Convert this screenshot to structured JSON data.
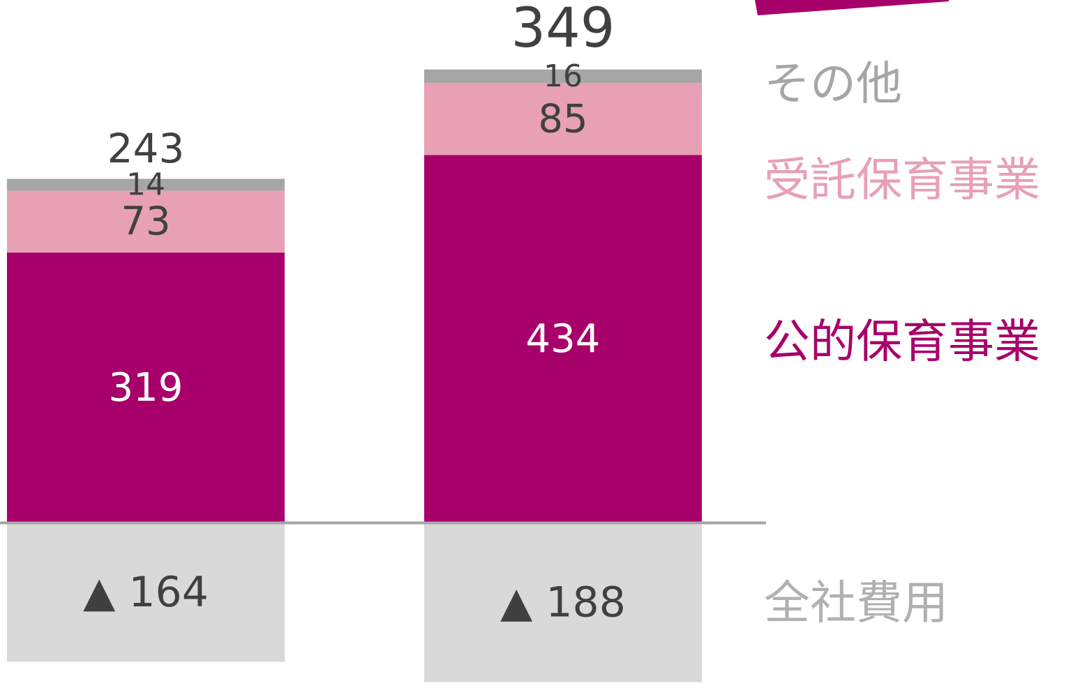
{
  "chart_data": {
    "type": "bar",
    "stacked": true,
    "categories": [
      null,
      null
    ],
    "series": [
      {
        "name": "公的保育事業",
        "color": "#a8006a",
        "values": [
          319,
          434
        ]
      },
      {
        "name": "受託保育事業",
        "color": "#e8a0b4",
        "values": [
          73,
          85
        ]
      },
      {
        "name": "その他",
        "color": "#a6a6a6",
        "values": [
          14,
          16
        ]
      },
      {
        "name": "全社費用",
        "color": "#d9d9d9",
        "values": [
          -164,
          -188
        ],
        "value_labels": [
          "▲ 164",
          "▲ 188"
        ]
      }
    ],
    "totals": [
      243,
      349
    ],
    "ylim": [
      -189,
      617
    ]
  }
}
